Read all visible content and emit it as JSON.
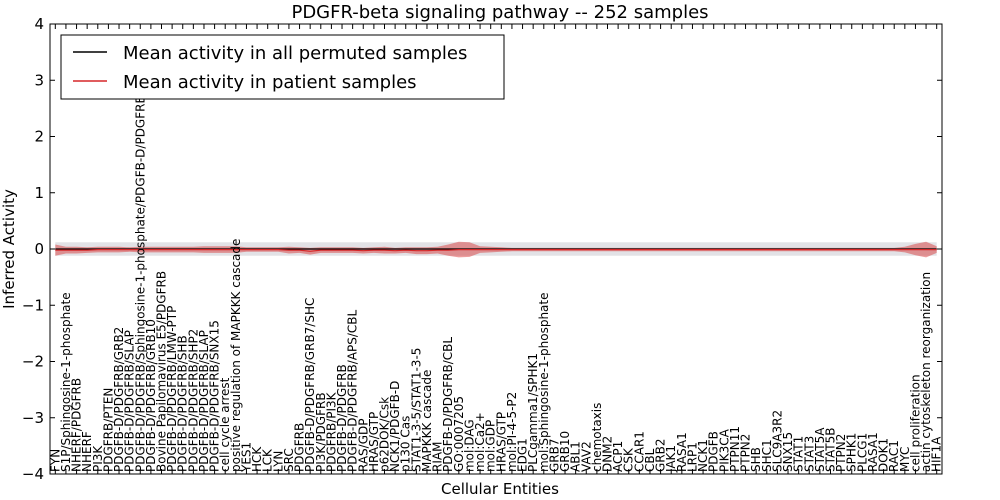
{
  "chart_data": {
    "type": "line",
    "title": "PDGFR-beta signaling pathway -- 252 samples",
    "xlabel": "Cellular Entities",
    "ylabel": "Inferred Activity",
    "ylim": [
      -4,
      4
    ],
    "yticks": [
      4,
      3,
      2,
      1,
      0,
      -1,
      -2,
      -3,
      -4
    ],
    "ytick_labels": [
      "4",
      "3",
      "2",
      "1",
      "0",
      "−1",
      "−2",
      "−3",
      "−4"
    ],
    "grid": false,
    "legend_location": "top-left",
    "categories": [
      "FYN",
      "S1P/Sphingosine-1-phosphate",
      "NHERF/PDGFRB",
      "NHERF",
      "PI3K",
      "PDGFRB/PTEN",
      "PDGFB-D/PDGFRB/GRB2",
      "PDGFB-D/PDGFRB/SLAP",
      "PDGFB-D/PDGFRB/Sphingosine-1-phosphate/PDGFB-D/PDGFRB",
      "PDGFB-D/PDGFRB/GRB10",
      "Bovine Papilomavirus E5/PDGFRB",
      "PDGFB-D/PDGFRB/LMW-PTP",
      "PDGFB-D/PDGFRB/SHB",
      "PDGFB-D/PDGFRB/SHP2",
      "PDGFB-D/PDGFRB/SLAP",
      "PDGFB-D/PDGFRB/SNX15",
      "cell cycle arrest",
      "positive regulation of MAPKKK cascade",
      "YES1",
      "HCK",
      "LCK",
      "LYN",
      "SRC",
      "PDGFRB",
      "PDGFB-D/PDGFRB/GRB7/SHC",
      "PI3K/PDGFRB",
      "PDGFRB/PI3K",
      "PDGFB-D/PDGFRB",
      "PDGFB-D/PDGFRB/APS/CBL",
      "RAS/GDP",
      "HRAS/GTP",
      "p62DOK/Csk",
      "NCK1/PDGFB-D",
      "p130 Cas",
      "STAT1-3-5/STAT1-3-5",
      "MAPKKK cascade",
      "RIAM",
      "PDGFB-D/PDGFRB/CBL",
      "GO:0007205",
      "mol:DAG",
      "mol:Ca2+",
      "mol:GDP",
      "HRAS/GTP",
      "mol:PI-4-5-P2",
      "EDG1",
      "PLCgamma1/SPHK1",
      "mol:Sphingosine-1-phosphate",
      "GRB7",
      "GRB10",
      "ABL1",
      "VAV2",
      "chemotaxis",
      "DNM2",
      "ACP1",
      "CSK",
      "CCAR1",
      "CBL",
      "GRB2",
      "JAK1",
      "RASA1",
      "LRP1",
      "NCK1",
      "PDGFB",
      "PIK3CA",
      "PTPN11",
      "PTPN2",
      "SHB",
      "SHC1",
      "SLC9A3R2",
      "SNX15",
      "STAT1",
      "STAT3",
      "STAT5A",
      "STAT5B",
      "PTPN2",
      "SPHK1",
      "PLCG1",
      "RASA1",
      "DOK1",
      "RAC1",
      "MYC",
      "cell proliferation",
      "actin cytoskeleton reorganization",
      "HIF1A"
    ],
    "series": [
      {
        "name": "Mean activity in all permuted samples",
        "color": "#000000",
        "values": [
          0.0,
          0.0,
          0.0,
          0.0,
          0.0,
          0.0,
          0.0,
          0.0,
          0.0,
          0.0,
          0.0,
          0.0,
          0.0,
          0.0,
          0.0,
          0.0,
          0.0,
          0.0,
          0.0,
          0.0,
          0.0,
          0.0,
          0.0,
          0.0,
          0.0,
          0.0,
          0.0,
          0.0,
          0.0,
          0.0,
          0.0,
          0.0,
          0.0,
          0.0,
          0.0,
          0.0,
          0.0,
          0.0,
          0.0,
          0.0,
          0.0,
          0.0,
          0.0,
          0.0,
          0.0,
          0.0,
          0.0,
          0.0,
          0.0,
          0.0,
          0.0,
          0.0,
          0.0,
          0.0,
          0.0,
          0.0,
          0.0,
          0.0,
          0.0,
          0.0,
          0.0,
          0.0,
          0.0,
          0.0,
          0.0,
          0.0,
          0.0,
          0.0,
          0.0,
          0.0,
          0.0,
          0.0,
          0.0,
          0.0,
          0.0,
          0.0,
          0.0,
          0.0,
          0.0,
          0.0,
          0.0,
          0.0,
          0.0,
          0.0
        ],
        "spread": [
          0.12,
          0.12,
          0.12,
          0.12,
          0.12,
          0.12,
          0.12,
          0.12,
          0.12,
          0.12,
          0.12,
          0.12,
          0.12,
          0.12,
          0.12,
          0.12,
          0.12,
          0.12,
          0.12,
          0.12,
          0.12,
          0.12,
          0.12,
          0.12,
          0.12,
          0.12,
          0.12,
          0.12,
          0.12,
          0.12,
          0.12,
          0.12,
          0.12,
          0.12,
          0.12,
          0.12,
          0.12,
          0.12,
          0.12,
          0.12,
          0.12,
          0.12,
          0.12,
          0.12,
          0.12,
          0.12,
          0.12,
          0.12,
          0.12,
          0.12,
          0.12,
          0.12,
          0.12,
          0.12,
          0.12,
          0.12,
          0.12,
          0.12,
          0.12,
          0.12,
          0.12,
          0.12,
          0.12,
          0.12,
          0.12,
          0.12,
          0.12,
          0.12,
          0.12,
          0.12,
          0.12,
          0.12,
          0.12,
          0.12,
          0.12,
          0.12,
          0.12,
          0.12,
          0.12,
          0.12,
          0.12,
          0.12,
          0.12,
          0.12
        ]
      },
      {
        "name": "Mean activity in patient samples",
        "color": "#d62728",
        "values": [
          -0.02,
          -0.02,
          -0.02,
          -0.02,
          -0.01,
          -0.01,
          -0.01,
          -0.01,
          -0.01,
          -0.01,
          -0.01,
          -0.01,
          -0.01,
          -0.01,
          -0.01,
          -0.01,
          -0.01,
          -0.01,
          -0.01,
          -0.01,
          -0.01,
          -0.01,
          -0.02,
          -0.02,
          -0.04,
          -0.02,
          -0.02,
          -0.02,
          -0.02,
          -0.03,
          -0.02,
          -0.02,
          -0.03,
          -0.02,
          -0.03,
          -0.03,
          -0.02,
          -0.02,
          -0.01,
          -0.01,
          -0.01,
          -0.01,
          -0.01,
          -0.01,
          -0.01,
          -0.01,
          -0.01,
          -0.01,
          -0.01,
          -0.01,
          -0.01,
          -0.01,
          -0.01,
          -0.01,
          -0.01,
          -0.01,
          -0.01,
          -0.01,
          -0.01,
          -0.01,
          -0.01,
          -0.01,
          -0.01,
          -0.01,
          -0.01,
          -0.01,
          -0.01,
          -0.01,
          -0.01,
          -0.01,
          -0.01,
          -0.01,
          -0.01,
          -0.01,
          -0.01,
          -0.01,
          -0.01,
          -0.01,
          -0.01,
          -0.01,
          -0.01,
          -0.01,
          -0.01,
          -0.01
        ],
        "spread": [
          0.1,
          0.06,
          0.06,
          0.05,
          0.05,
          0.05,
          0.05,
          0.04,
          0.05,
          0.05,
          0.05,
          0.05,
          0.05,
          0.05,
          0.06,
          0.06,
          0.06,
          0.06,
          0.04,
          0.04,
          0.04,
          0.04,
          0.06,
          0.05,
          0.06,
          0.05,
          0.05,
          0.05,
          0.05,
          0.05,
          0.05,
          0.06,
          0.05,
          0.05,
          0.06,
          0.06,
          0.06,
          0.1,
          0.14,
          0.13,
          0.06,
          0.05,
          0.04,
          0.03,
          0.03,
          0.03,
          0.03,
          0.03,
          0.03,
          0.03,
          0.03,
          0.03,
          0.03,
          0.03,
          0.03,
          0.03,
          0.03,
          0.03,
          0.03,
          0.03,
          0.03,
          0.03,
          0.03,
          0.03,
          0.03,
          0.03,
          0.03,
          0.03,
          0.03,
          0.03,
          0.03,
          0.03,
          0.03,
          0.03,
          0.03,
          0.03,
          0.03,
          0.03,
          0.03,
          0.03,
          0.05,
          0.1,
          0.14,
          0.06
        ]
      }
    ]
  }
}
